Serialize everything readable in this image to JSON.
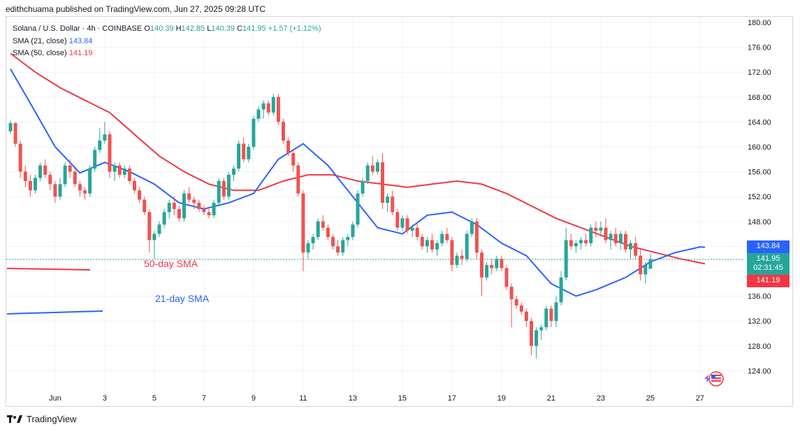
{
  "published": "edithchuama published on TradingView.com, Jun 27, 2025 09:28 UTC",
  "legend": {
    "symbol": "Solana / U.S. Dollar · 4h · COINBASE",
    "o_label": "O",
    "o": "140.39",
    "h_label": "H",
    "h": "142.85",
    "l_label": "L",
    "l": "140.39",
    "c_label": "C",
    "c": "141.95",
    "change": "+1.57 (+1.12%)",
    "sma21_label": "SMA (21, close)",
    "sma21_value": "143.84",
    "sma50_label": "SMA (50, close)",
    "sma50_value": "141.19"
  },
  "annotations": {
    "sma50": "50-day SMA",
    "sma21": "21-day SMA"
  },
  "price_tags": {
    "sma21": "143.84",
    "last": "141.95",
    "countdown": "02:31:45",
    "sma50": "141.19"
  },
  "footer": {
    "brand": "TradingView"
  },
  "colors": {
    "up": "#26a69a",
    "down": "#ef5350",
    "sma21": "#2962ff",
    "sma50": "#f23645",
    "grid": "#f0f3fa"
  },
  "chart_data": {
    "type": "candlestick",
    "title": "Solana / U.S. Dollar · 4h · COINBASE",
    "ylim": [
      120,
      182
    ],
    "y_ticks": [
      124,
      128,
      132,
      136,
      140,
      144,
      148,
      152,
      156,
      160,
      164,
      168,
      172,
      176,
      180
    ],
    "y_tick_labels": [
      "124.00",
      "128.00",
      "132.00",
      "136.00",
      "140.00",
      "144.00",
      "148.00",
      "152.00",
      "156.00",
      "160.00",
      "164.00",
      "168.00",
      "172.00",
      "176.00",
      "180.00"
    ],
    "x_ticks": [
      {
        "label": "Jun",
        "i": 9
      },
      {
        "label": "3",
        "i": 19
      },
      {
        "label": "5",
        "i": 29
      },
      {
        "label": "7",
        "i": 39
      },
      {
        "label": "9",
        "i": 49
      },
      {
        "label": "11",
        "i": 59
      },
      {
        "label": "13",
        "i": 69
      },
      {
        "label": "15",
        "i": 79
      },
      {
        "label": "17",
        "i": 89
      },
      {
        "label": "19",
        "i": 99
      },
      {
        "label": "21",
        "i": 109
      },
      {
        "label": "23",
        "i": 119
      },
      {
        "label": "25",
        "i": 129
      },
      {
        "label": "27",
        "i": 139
      }
    ],
    "candles_ohlc": [
      [
        162.5,
        164.2,
        162.0,
        163.8
      ],
      [
        163.8,
        164.0,
        160.0,
        160.5
      ],
      [
        160.5,
        161.0,
        155.0,
        156.0
      ],
      [
        156.0,
        157.0,
        153.5,
        154.5
      ],
      [
        154.5,
        155.5,
        152.0,
        153.0
      ],
      [
        153.0,
        155.5,
        152.5,
        155.0
      ],
      [
        155.0,
        157.5,
        154.5,
        157.0
      ],
      [
        157.0,
        158.0,
        155.0,
        155.5
      ],
      [
        155.5,
        156.0,
        153.0,
        154.0
      ],
      [
        154.0,
        154.5,
        151.0,
        152.0
      ],
      [
        152.0,
        155.0,
        151.5,
        154.0
      ],
      [
        154.0,
        157.5,
        153.5,
        157.0
      ],
      [
        157.0,
        158.0,
        155.0,
        156.0
      ],
      [
        156.0,
        156.5,
        153.5,
        154.0
      ],
      [
        154.0,
        154.5,
        152.0,
        153.0
      ],
      [
        153.0,
        153.5,
        151.5,
        152.5
      ],
      [
        152.5,
        157.0,
        152.0,
        156.5
      ],
      [
        156.5,
        160.0,
        156.0,
        159.5
      ],
      [
        159.5,
        163.0,
        159.0,
        161.0
      ],
      [
        161.0,
        164.0,
        160.5,
        162.0
      ],
      [
        162.0,
        162.5,
        155.0,
        156.0
      ],
      [
        156.0,
        157.5,
        154.5,
        157.0
      ],
      [
        157.0,
        157.5,
        155.0,
        155.5
      ],
      [
        155.5,
        157.0,
        155.0,
        156.5
      ],
      [
        156.5,
        157.0,
        154.0,
        154.5
      ],
      [
        154.5,
        155.0,
        152.5,
        153.0
      ],
      [
        153.0,
        153.5,
        151.0,
        151.5
      ],
      [
        151.5,
        152.0,
        149.0,
        149.5
      ],
      [
        149.5,
        150.0,
        143.0,
        145.0
      ],
      [
        145.0,
        146.5,
        142.0,
        146.0
      ],
      [
        146.0,
        148.0,
        145.5,
        147.5
      ],
      [
        147.5,
        150.0,
        147.0,
        149.5
      ],
      [
        149.5,
        151.5,
        148.5,
        151.0
      ],
      [
        151.0,
        152.0,
        149.0,
        150.0
      ],
      [
        150.0,
        150.5,
        148.0,
        148.5
      ],
      [
        148.5,
        153.0,
        148.0,
        152.5
      ],
      [
        152.5,
        153.5,
        151.0,
        151.5
      ],
      [
        151.5,
        152.0,
        150.0,
        151.0
      ],
      [
        151.0,
        151.5,
        149.5,
        150.0
      ],
      [
        150.0,
        150.5,
        149.0,
        149.5
      ],
      [
        149.5,
        150.0,
        148.5,
        149.0
      ],
      [
        149.0,
        151.5,
        148.5,
        151.0
      ],
      [
        151.0,
        155.0,
        150.5,
        154.5
      ],
      [
        154.5,
        155.0,
        151.5,
        152.0
      ],
      [
        152.0,
        156.0,
        151.5,
        155.5
      ],
      [
        155.5,
        157.0,
        154.5,
        156.5
      ],
      [
        156.5,
        161.0,
        156.0,
        160.5
      ],
      [
        160.5,
        161.5,
        157.5,
        158.0
      ],
      [
        158.0,
        160.5,
        157.5,
        160.0
      ],
      [
        160.0,
        165.0,
        159.5,
        164.5
      ],
      [
        164.5,
        166.5,
        164.0,
        166.0
      ],
      [
        166.0,
        167.5,
        164.5,
        167.0
      ],
      [
        167.0,
        167.5,
        165.0,
        165.5
      ],
      [
        165.5,
        168.5,
        165.0,
        168.0
      ],
      [
        168.0,
        168.5,
        163.5,
        164.0
      ],
      [
        164.0,
        164.5,
        160.5,
        161.0
      ],
      [
        161.0,
        161.5,
        158.5,
        159.0
      ],
      [
        159.0,
        159.5,
        156.0,
        157.0
      ],
      [
        157.0,
        157.5,
        152.0,
        152.5
      ],
      [
        152.5,
        153.0,
        140.0,
        143.0
      ],
      [
        143.0,
        145.0,
        142.0,
        144.5
      ],
      [
        144.5,
        146.0,
        143.5,
        145.5
      ],
      [
        145.5,
        148.5,
        145.0,
        148.0
      ],
      [
        148.0,
        149.0,
        146.5,
        147.0
      ],
      [
        147.0,
        147.5,
        145.0,
        145.5
      ],
      [
        145.5,
        146.0,
        143.5,
        144.0
      ],
      [
        144.0,
        145.0,
        142.5,
        143.0
      ],
      [
        143.0,
        145.5,
        142.5,
        145.0
      ],
      [
        145.0,
        146.0,
        144.0,
        145.5
      ],
      [
        145.5,
        148.0,
        145.0,
        147.5
      ],
      [
        147.5,
        153.0,
        147.0,
        152.5
      ],
      [
        152.5,
        155.0,
        152.0,
        154.5
      ],
      [
        154.5,
        157.5,
        154.0,
        157.0
      ],
      [
        157.0,
        158.5,
        155.5,
        156.0
      ],
      [
        156.0,
        158.0,
        155.5,
        157.5
      ],
      [
        157.5,
        159.0,
        150.0,
        151.0
      ],
      [
        151.0,
        152.5,
        149.5,
        152.0
      ],
      [
        152.0,
        153.0,
        149.0,
        149.5
      ],
      [
        149.5,
        150.0,
        146.5,
        147.0
      ],
      [
        147.0,
        149.0,
        146.5,
        148.5
      ],
      [
        148.5,
        149.0,
        146.0,
        146.5
      ],
      [
        146.5,
        147.5,
        145.5,
        147.0
      ],
      [
        147.0,
        148.0,
        145.0,
        145.5
      ],
      [
        145.5,
        146.0,
        143.5,
        144.0
      ],
      [
        144.0,
        145.5,
        143.0,
        145.0
      ],
      [
        145.0,
        146.0,
        143.0,
        143.5
      ],
      [
        143.5,
        145.0,
        142.5,
        144.5
      ],
      [
        144.5,
        146.5,
        144.0,
        146.0
      ],
      [
        146.0,
        147.0,
        144.5,
        145.0
      ],
      [
        145.0,
        145.5,
        140.0,
        141.0
      ],
      [
        141.0,
        143.0,
        140.5,
        142.5
      ],
      [
        142.5,
        143.5,
        141.0,
        142.0
      ],
      [
        142.0,
        146.5,
        141.5,
        146.0
      ],
      [
        146.0,
        148.5,
        145.5,
        148.0
      ],
      [
        148.0,
        148.5,
        142.0,
        143.0
      ],
      [
        143.0,
        143.5,
        136.0,
        139.0
      ],
      [
        139.0,
        141.5,
        138.5,
        141.0
      ],
      [
        141.0,
        142.0,
        139.5,
        140.5
      ],
      [
        140.5,
        142.5,
        140.0,
        142.0
      ],
      [
        142.0,
        142.5,
        140.0,
        140.5
      ],
      [
        140.5,
        141.0,
        137.0,
        137.5
      ],
      [
        137.5,
        138.0,
        131.0,
        135.5
      ],
      [
        135.5,
        136.0,
        134.0,
        134.5
      ],
      [
        134.5,
        135.0,
        133.0,
        133.5
      ],
      [
        133.5,
        134.0,
        131.0,
        132.0
      ],
      [
        132.0,
        132.5,
        126.5,
        128.0
      ],
      [
        128.0,
        131.0,
        126.0,
        130.5
      ],
      [
        130.5,
        131.5,
        129.0,
        131.0
      ],
      [
        131.0,
        134.5,
        130.5,
        134.0
      ],
      [
        134.0,
        134.5,
        131.0,
        132.0
      ],
      [
        132.0,
        136.0,
        131.0,
        135.0
      ],
      [
        135.0,
        140.0,
        134.5,
        139.0
      ],
      [
        139.0,
        147.0,
        138.5,
        145.0
      ],
      [
        145.0,
        146.0,
        143.5,
        144.0
      ],
      [
        144.0,
        145.0,
        143.0,
        144.5
      ],
      [
        144.5,
        145.5,
        143.5,
        145.0
      ],
      [
        145.0,
        146.0,
        144.0,
        144.5
      ],
      [
        144.5,
        147.5,
        144.0,
        147.0
      ],
      [
        147.0,
        148.0,
        145.5,
        146.5
      ],
      [
        146.5,
        148.0,
        145.5,
        147.0
      ],
      [
        147.0,
        148.5,
        144.5,
        145.0
      ],
      [
        145.0,
        146.5,
        143.5,
        146.0
      ],
      [
        146.0,
        147.0,
        144.0,
        144.5
      ],
      [
        144.5,
        146.5,
        143.5,
        146.0
      ],
      [
        146.0,
        146.5,
        143.0,
        143.5
      ],
      [
        143.5,
        145.0,
        142.0,
        144.5
      ],
      [
        144.5,
        145.5,
        142.0,
        142.5
      ],
      [
        142.5,
        143.5,
        138.5,
        139.5
      ],
      [
        139.5,
        141.5,
        138.0,
        141.0
      ],
      [
        140.39,
        142.85,
        140.39,
        141.95
      ]
    ],
    "sma21": [
      [
        0,
        172.5
      ],
      [
        4,
        167
      ],
      [
        9,
        160
      ],
      [
        14,
        155.8
      ],
      [
        19,
        157.5
      ],
      [
        24,
        156
      ],
      [
        29,
        154
      ],
      [
        34,
        151
      ],
      [
        39,
        150
      ],
      [
        44,
        151
      ],
      [
        49,
        152.5
      ],
      [
        54,
        158
      ],
      [
        59,
        160.5
      ],
      [
        64,
        157
      ],
      [
        69,
        152
      ],
      [
        74,
        147
      ],
      [
        79,
        146
      ],
      [
        84,
        149
      ],
      [
        89,
        149.5
      ],
      [
        94,
        147.5
      ],
      [
        99,
        144.5
      ],
      [
        104,
        142.5
      ],
      [
        109,
        138
      ],
      [
        114,
        136
      ],
      [
        118,
        137
      ],
      [
        124,
        139
      ],
      [
        129,
        141.5
      ],
      [
        134,
        143
      ],
      [
        139,
        143.9
      ],
      [
        140,
        143.84
      ]
    ],
    "sma50": [
      [
        0,
        175
      ],
      [
        5,
        172
      ],
      [
        10,
        169.5
      ],
      [
        15,
        167.5
      ],
      [
        20,
        165.5
      ],
      [
        25,
        162
      ],
      [
        30,
        158.5
      ],
      [
        35,
        156
      ],
      [
        40,
        154
      ],
      [
        45,
        153
      ],
      [
        50,
        153
      ],
      [
        55,
        154.5
      ],
      [
        60,
        155.5
      ],
      [
        65,
        155.5
      ],
      [
        70,
        154.5
      ],
      [
        75,
        154
      ],
      [
        80,
        153.5
      ],
      [
        85,
        154
      ],
      [
        90,
        154.5
      ],
      [
        95,
        154
      ],
      [
        100,
        152.5
      ],
      [
        105,
        150.5
      ],
      [
        110,
        148.5
      ],
      [
        115,
        147
      ],
      [
        120,
        145.5
      ],
      [
        125,
        144
      ],
      [
        130,
        143
      ],
      [
        135,
        142
      ],
      [
        140,
        141.19
      ]
    ]
  }
}
